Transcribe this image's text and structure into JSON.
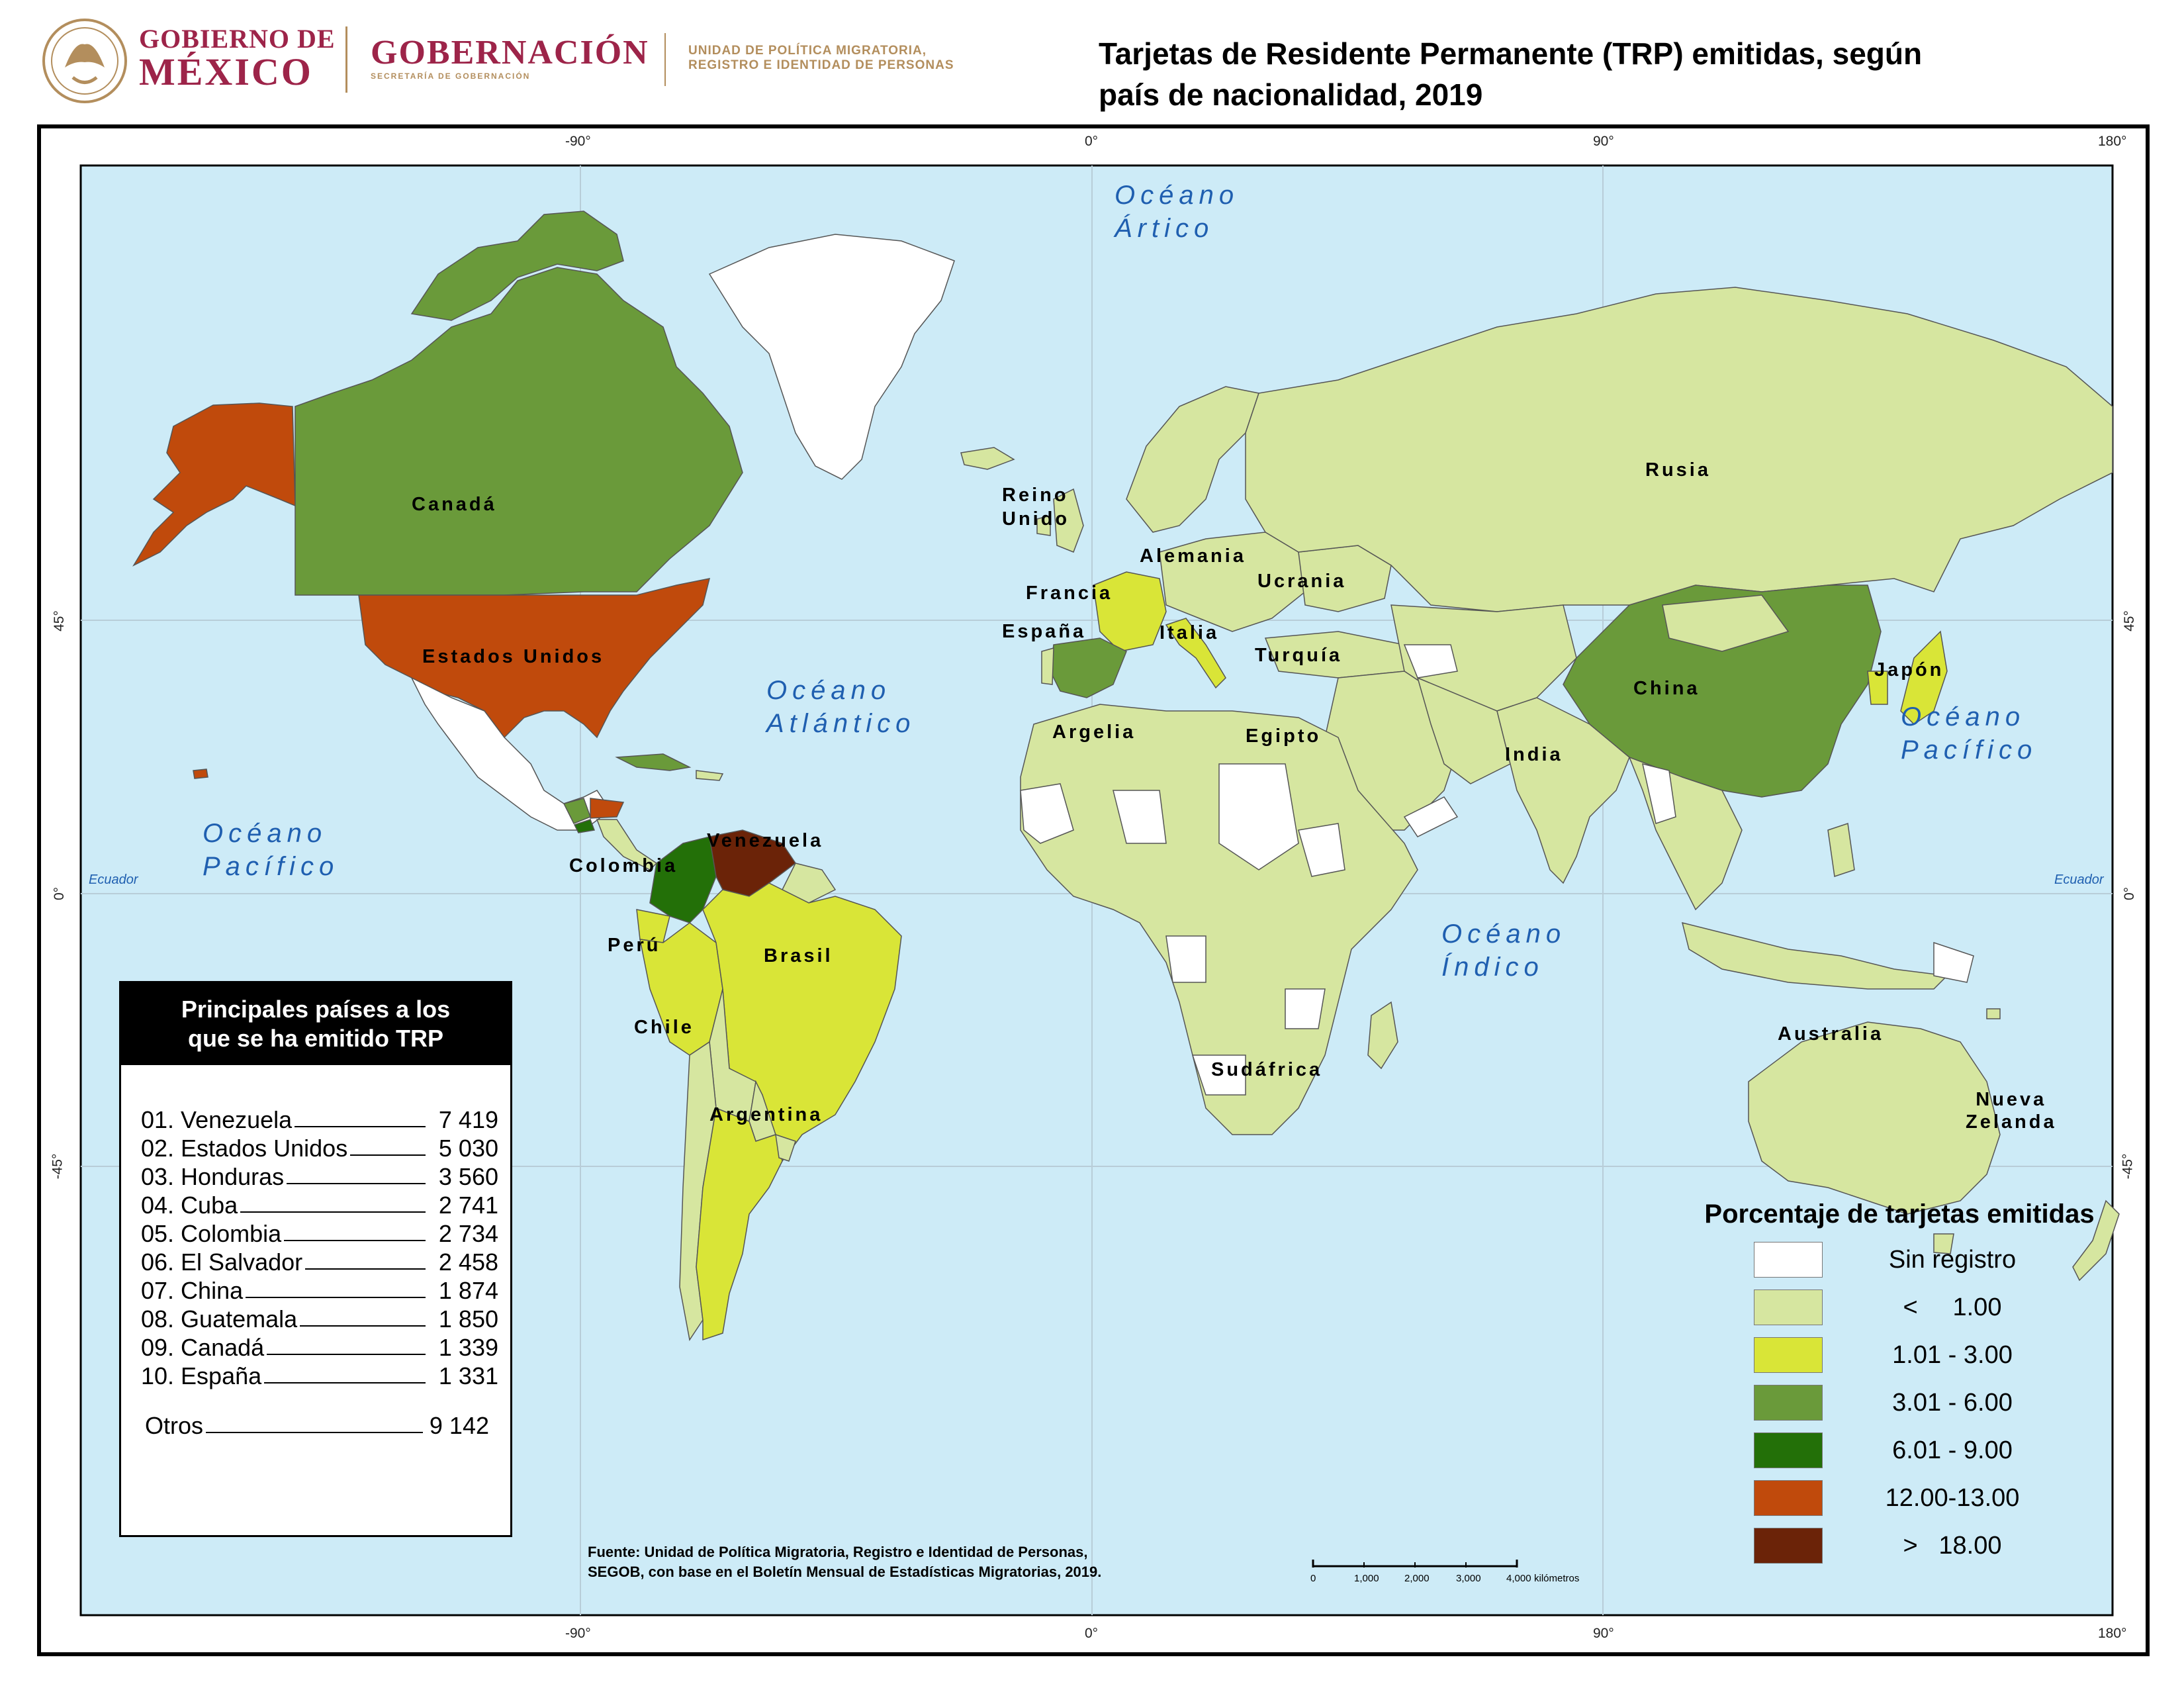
{
  "header": {
    "gov_line1": "GOBIERNO DE",
    "gov_line2": "MÉXICO",
    "secretaria_name": "GOBERNACIÓN",
    "secretaria_sub": "SECRETARÍA DE GOBERNACIÓN",
    "unit_line1": "UNIDAD DE POLÍTICA MIGRATORIA,",
    "unit_line2": "REGISTRO E IDENTIDAD DE PERSONAS",
    "brand_color": "#9d2449",
    "gold_color": "#b38e5d"
  },
  "title_line1": "Tarjetas de Residente Permanente (TRP) emitidas, según",
  "title_line2": "país de nacionalidad, 2019",
  "graticule": {
    "top": [
      "-90°",
      "0°",
      "90°",
      "180°"
    ],
    "bottom": [
      "-90°",
      "0°",
      "90°",
      "180°"
    ],
    "left": [
      "45°",
      "0°",
      "-45°"
    ],
    "right": [
      "45°",
      "0°",
      "-45°"
    ],
    "equator_left": "Ecuador",
    "equator_right": "Ecuador"
  },
  "oceans": {
    "arctic_1": "Océano",
    "arctic_2": "Ártico",
    "atlantic_1": "Océano",
    "atlantic_2": "Atlántico",
    "pacific_w_1": "Océano",
    "pacific_w_2": "Pacífico",
    "pacific_e_1": "Océano",
    "pacific_e_2": "Pacífico",
    "indian_1": "Océano",
    "indian_2": "Índico"
  },
  "country_labels": {
    "canada": "Canadá",
    "usa": "Estados Unidos",
    "venezuela": "Venezuela",
    "colombia": "Colombia",
    "peru": "Perú",
    "brasil": "Brasil",
    "chile": "Chile",
    "argentina": "Argentina",
    "reino_unido_1": "Reino",
    "reino_unido_2": "Unido",
    "francia": "Francia",
    "espana": "España",
    "alemania": "Alemania",
    "italia": "Italia",
    "ucrania": "Ucrania",
    "turquia": "Turquía",
    "argelia": "Argelia",
    "egipto": "Egipto",
    "sudafrica": "Sudáfrica",
    "rusia": "Rusia",
    "china": "China",
    "india": "India",
    "japon": "Japón",
    "australia": "Australia",
    "nz_1": "Nueva",
    "nz_2": "Zelanda"
  },
  "top_table": {
    "heading_1": "Principales países a los",
    "heading_2": "que se ha emitido TRP",
    "rows": [
      {
        "label": "01. Venezuela",
        "value": "7 419"
      },
      {
        "label": "02. Estados Unidos",
        "value": "5 030"
      },
      {
        "label": "03. Honduras",
        "value": "3 560"
      },
      {
        "label": "04. Cuba",
        "value": "2 741"
      },
      {
        "label": "05. Colombia",
        "value": "2 734"
      },
      {
        "label": "06. El Salvador",
        "value": "2 458"
      },
      {
        "label": "07. China",
        "value": "1 874"
      },
      {
        "label": "08. Guatemala",
        "value": "1 850"
      },
      {
        "label": "09. Canadá",
        "value": "1 339"
      },
      {
        "label": "10. España",
        "value": "1 331"
      }
    ],
    "other": {
      "label": "Otros",
      "value": "9 142"
    }
  },
  "legend": {
    "title": "Porcentaje de tarjetas emitidas",
    "items": [
      {
        "label": "Sin registro",
        "color": "#ffffff"
      },
      {
        "label": "<     1.00",
        "color": "#d6e6a0"
      },
      {
        "label": "1.01 - 3.00",
        "color": "#d9e537"
      },
      {
        "label": "3.01 - 6.00",
        "color": "#6a9a3a"
      },
      {
        "label": "6.01 - 9.00",
        "color": "#237008"
      },
      {
        "label": "12.00-13.00",
        "color": "#c04a0c"
      },
      {
        "label": ">   18.00",
        "color": "#6b2308"
      }
    ]
  },
  "source_line1": "Fuente: Unidad de Política Migratoria, Registro e Identidad de Personas,",
  "source_line2": "SEGOB, con base en el Boletín Mensual de Estadísticas Migratorias, 2019.",
  "scale": {
    "ticks": [
      "0",
      "1,000",
      "2,000",
      "3,000",
      "4,000"
    ],
    "unit": "kilómetros"
  },
  "colors": {
    "ocean": "#cdebf7",
    "land_low": "#d6e6a0",
    "no_data": "#ffffff"
  }
}
